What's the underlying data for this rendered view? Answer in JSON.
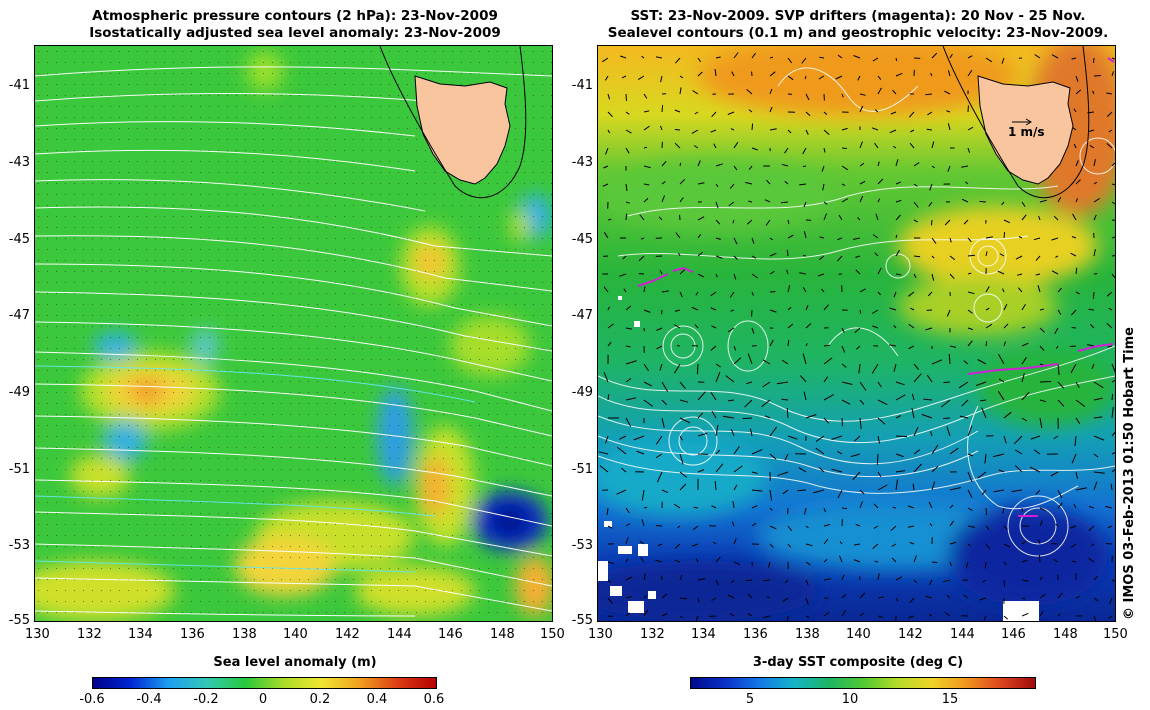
{
  "left_panel": {
    "title_line1": "Atmospheric pressure contours (2 hPa): 23-Nov-2009",
    "title_line2": "Isostatically adjusted sea level anomaly: 23-Nov-2009",
    "colorbar_title": "Sea level anomaly (m)",
    "colorbar_ticks": [
      "-0.6",
      "-0.4",
      "-0.2",
      "0",
      "0.2",
      "0.4",
      "0.6"
    ],
    "colorbar_range": [
      -0.6,
      0.6
    ]
  },
  "right_panel": {
    "title_line1": "SST: 23-Nov-2009. SVP drifters (magenta): 20 Nov - 25 Nov.",
    "title_line2": "Sealevel contours (0.1 m) and geostrophic velocity: 23-Nov-2009.",
    "colorbar_title": "3-day SST composite (deg C)",
    "colorbar_ticks": [
      "5",
      "10",
      "15"
    ],
    "colorbar_range": [
      1,
      19.5
    ],
    "velocity_scale_label": "1 m/s"
  },
  "axes": {
    "lon_ticks": [
      "130",
      "132",
      "134",
      "136",
      "138",
      "140",
      "142",
      "144",
      "146",
      "148",
      "150"
    ],
    "lat_ticks": [
      "-41",
      "-43",
      "-45",
      "-47",
      "-49",
      "-51",
      "-53",
      "-55"
    ]
  },
  "credit": "© IMOS 03-Feb-2013 01:50 Hobart Time",
  "colors": {
    "land": "#f8c59f",
    "contour_left": "#ffffff",
    "contour_right": "#ffffff",
    "arrows": "#000000",
    "drifters": "#d21fd8"
  }
}
